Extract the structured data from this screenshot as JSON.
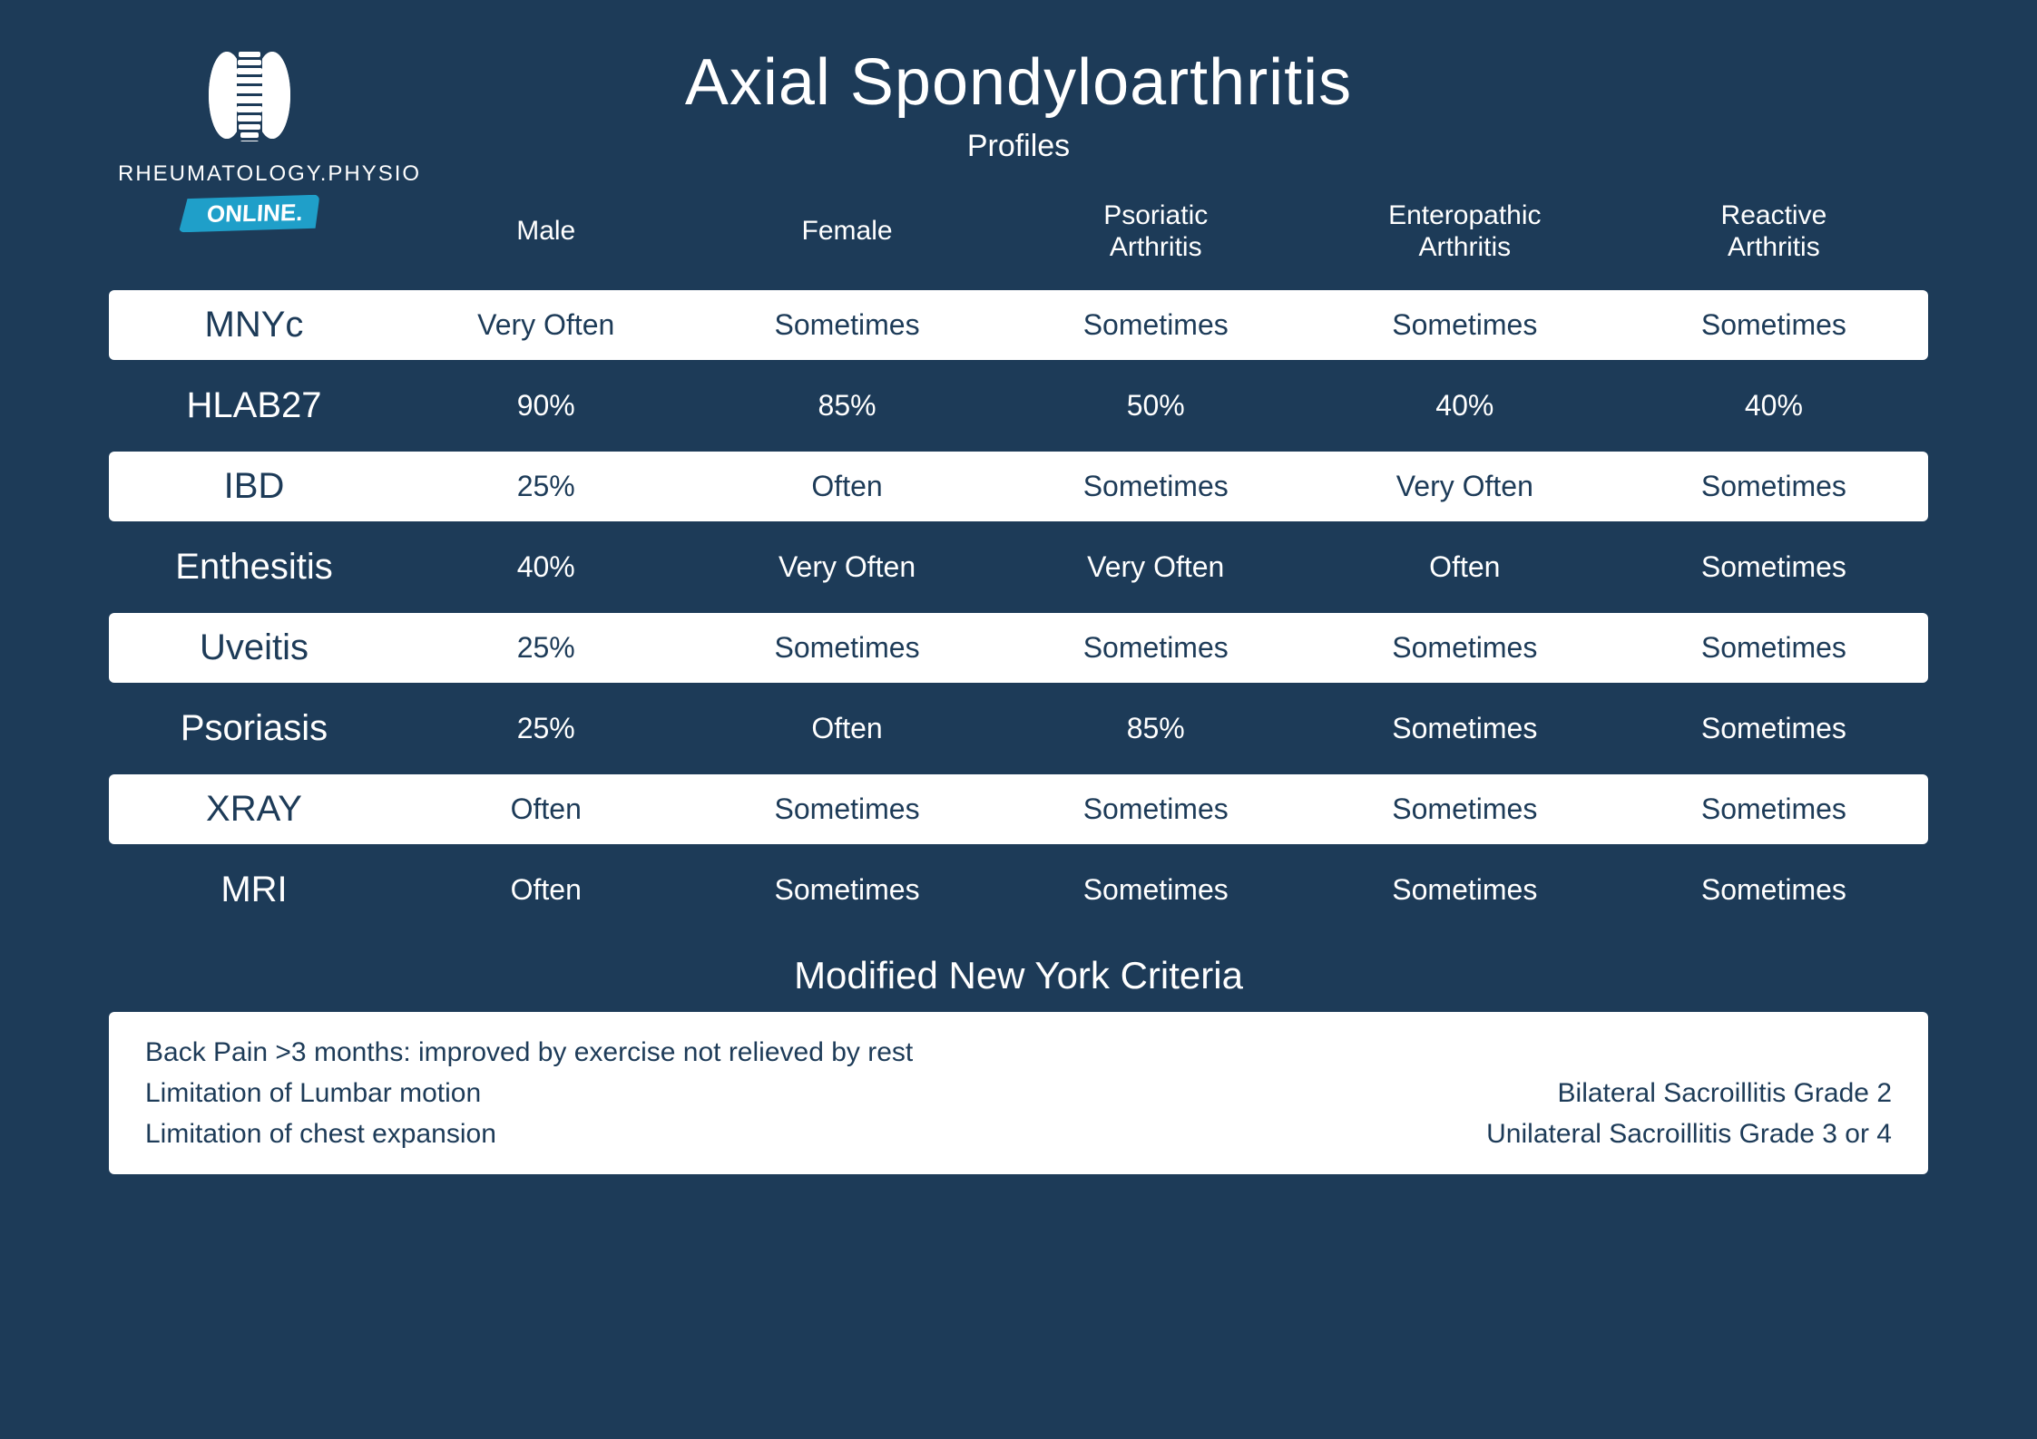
{
  "brand": {
    "line1": "RHEUMATOLOGY.PHYSIO",
    "badge": "ONLINE."
  },
  "title": "Axial Spondyloarthritis",
  "subtitle": "Profiles",
  "colors": {
    "background": "#1d3b58",
    "row_white_bg": "#ffffff",
    "row_white_text": "#1d3b58",
    "text": "#ffffff",
    "badge_bg": "#1f9fc9"
  },
  "table": {
    "type": "table",
    "columns": [
      "",
      "Male",
      "Female",
      "Psoriatic\nArthritis",
      "Enteropathic\nArthritis",
      "Reactive\nArthritis"
    ],
    "rows": [
      {
        "label": "MNYc",
        "style": "white",
        "cells": [
          "Very Often",
          "Sometimes",
          "Sometimes",
          "Sometimes",
          "Sometimes"
        ]
      },
      {
        "label": "HLAB27",
        "style": "plain",
        "cells": [
          "90%",
          "85%",
          "50%",
          "40%",
          "40%"
        ]
      },
      {
        "label": "IBD",
        "style": "white",
        "cells": [
          "25%",
          "Often",
          "Sometimes",
          "Very Often",
          "Sometimes"
        ]
      },
      {
        "label": "Enthesitis",
        "style": "plain",
        "cells": [
          "40%",
          "Very Often",
          "Very Often",
          "Often",
          "Sometimes"
        ]
      },
      {
        "label": "Uveitis",
        "style": "white",
        "cells": [
          "25%",
          "Sometimes",
          "Sometimes",
          "Sometimes",
          "Sometimes"
        ]
      },
      {
        "label": "Psoriasis",
        "style": "plain",
        "cells": [
          "25%",
          "Often",
          "85%",
          "Sometimes",
          "Sometimes"
        ]
      },
      {
        "label": "XRAY",
        "style": "white",
        "cells": [
          "Often",
          "Sometimes",
          "Sometimes",
          "Sometimes",
          "Sometimes"
        ]
      },
      {
        "label": "MRI",
        "style": "plain",
        "cells": [
          "Often",
          "Sometimes",
          "Sometimes",
          "Sometimes",
          "Sometimes"
        ]
      }
    ]
  },
  "criteria": {
    "title": "Modified New York Criteria",
    "left": [
      "Back Pain >3 months: improved by exercise not relieved by rest",
      "Limitation of Lumbar motion",
      "Limitation of chest expansion"
    ],
    "right": [
      "Bilateral Sacroillitis Grade 2",
      "Unilateral Sacroillitis Grade 3 or 4"
    ]
  }
}
